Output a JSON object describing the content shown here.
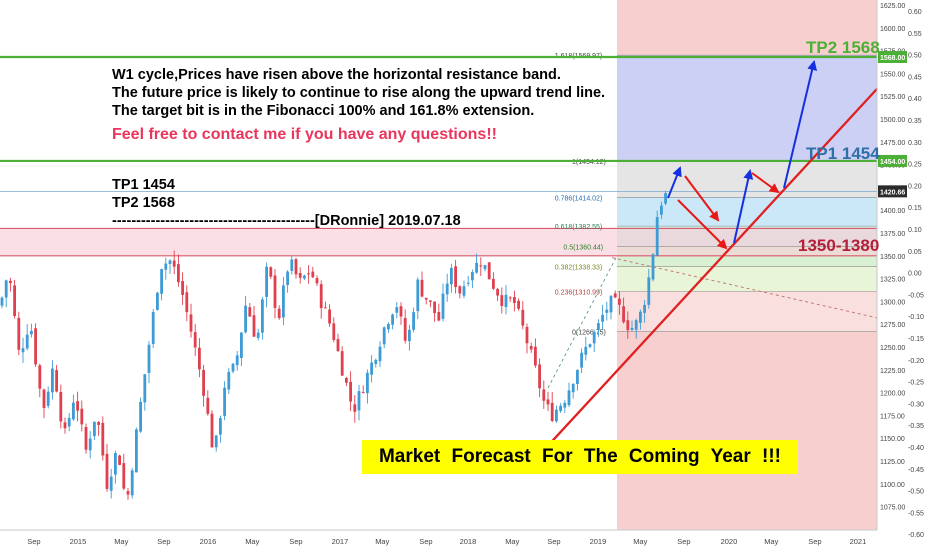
{
  "annotations": {
    "analysis_lines": [
      "W1 cycle,Prices have risen above the horizontal resistance band.",
      "The future price is likely to continue to rise along the upward trend line.",
      "The target bit is in the Fibonacci 100% and 161.8% extension."
    ],
    "contact": "Feel free to contact me if you have any questions!!",
    "tp_lines": [
      "TP1  1454",
      "TP2  1568"
    ],
    "signature": "------------------------------------------[DRonnie]  2019.07.18",
    "banner": "Market  Forecast  For  The  Coming  Year !!!",
    "tp2_tag": "TP2 1568",
    "tp1_tag": "TP1 1454",
    "band_tag": "1350-1380"
  },
  "colors": {
    "up": "#3d9bd6",
    "down": "#e0404d",
    "trend": "#e02020",
    "green_line": "#4caf36",
    "arrow_blue": "#1530e0",
    "arrow_red": "#e81818"
  },
  "chart_data": {
    "type": "candlestick",
    "timeframe": "weekly",
    "x_ticks": [
      "Sep",
      "2015",
      "May",
      "Sep",
      "2016",
      "May",
      "Sep",
      "2017",
      "May",
      "Sep",
      "2018",
      "May",
      "Sep",
      "2019",
      "May",
      "Sep",
      "2020",
      "May",
      "Sep",
      "2021"
    ],
    "y_ticks": [
      1075,
      1100,
      1125,
      1150,
      1175,
      1200,
      1225,
      1250,
      1275,
      1300,
      1325,
      1350,
      1375,
      1400,
      1425,
      1450,
      1475,
      1500,
      1525,
      1550,
      1575,
      1600,
      1625
    ],
    "y_tick_labels": [
      "1075.00",
      "1100.00",
      "1125.00",
      "1150.00",
      "1175.00",
      "1200.00",
      "1225.00",
      "1250.00",
      "1275.00",
      "1300.00",
      "1325.00",
      "1350.00",
      "1375.00",
      "1400.00",
      "1425.00",
      "1450.00",
      "1475.00",
      "1500.00",
      "1525.00",
      "1550.00",
      "1575.00",
      "1600.00",
      "1625.00"
    ],
    "ylim": [
      1055,
      1640
    ],
    "overlay_ticks": [
      "0.60",
      "0.55",
      "0.50",
      "0.45",
      "0.40",
      "0.35",
      "0.30",
      "0.25",
      "0.20",
      "0.15",
      "0.10",
      "0.05",
      "0.00",
      "-0.05",
      "-0.10",
      "-0.15",
      "-0.20",
      "-0.25",
      "-0.30",
      "-0.35",
      "-0.40",
      "-0.45",
      "-0.50",
      "-0.55",
      "-0.60"
    ],
    "price_path": [
      [
        0,
        1295
      ],
      [
        8,
        1335
      ],
      [
        18,
        1240
      ],
      [
        28,
        1280
      ],
      [
        40,
        1180
      ],
      [
        50,
        1230
      ],
      [
        60,
        1150
      ],
      [
        70,
        1200
      ],
      [
        80,
        1135
      ],
      [
        90,
        1180
      ],
      [
        100,
        1100
      ],
      [
        110,
        1140
      ],
      [
        118,
        1075
      ],
      [
        128,
        1160
      ],
      [
        140,
        1260
      ],
      [
        150,
        1340
      ],
      [
        160,
        1345
      ],
      [
        170,
        1310
      ],
      [
        180,
        1260
      ],
      [
        190,
        1205
      ],
      [
        200,
        1130
      ],
      [
        210,
        1210
      ],
      [
        220,
        1230
      ],
      [
        230,
        1300
      ],
      [
        240,
        1255
      ],
      [
        250,
        1340
      ],
      [
        260,
        1280
      ],
      [
        270,
        1345
      ],
      [
        280,
        1320
      ],
      [
        290,
        1335
      ],
      [
        300,
        1300
      ],
      [
        310,
        1270
      ],
      [
        320,
        1225
      ],
      [
        330,
        1180
      ],
      [
        340,
        1210
      ],
      [
        350,
        1240
      ],
      [
        360,
        1275
      ],
      [
        370,
        1300
      ],
      [
        380,
        1250
      ],
      [
        390,
        1320
      ],
      [
        400,
        1300
      ],
      [
        410,
        1280
      ],
      [
        420,
        1335
      ],
      [
        430,
        1310
      ],
      [
        440,
        1335
      ],
      [
        450,
        1345
      ],
      [
        460,
        1320
      ],
      [
        470,
        1300
      ],
      [
        480,
        1300
      ],
      [
        490,
        1265
      ],
      [
        500,
        1225
      ],
      [
        508,
        1190
      ],
      [
        515,
        1175
      ],
      [
        522,
        1185
      ],
      [
        528,
        1195
      ],
      [
        535,
        1215
      ],
      [
        542,
        1235
      ],
      [
        550,
        1255
      ],
      [
        558,
        1270
      ],
      [
        565,
        1290
      ],
      [
        572,
        1300
      ],
      [
        580,
        1290
      ],
      [
        586,
        1275
      ],
      [
        592,
        1270
      ],
      [
        598,
        1285
      ],
      [
        604,
        1310
      ],
      [
        610,
        1355
      ],
      [
        614,
        1395
      ],
      [
        618,
        1410
      ],
      [
        624,
        1420
      ]
    ],
    "last_price": "1420.66",
    "levels": [
      {
        "label": "TP2",
        "value": 1568,
        "tag": "1568.00"
      },
      {
        "label": "TP1",
        "value": 1454,
        "tag": "1454.00"
      },
      {
        "label": "last",
        "value": 1420.66,
        "tag": "1420.66"
      }
    ],
    "fibonacci": [
      {
        "ratio": "1.618",
        "price": "1569.97",
        "value": 1569.97
      },
      {
        "ratio": "1",
        "price": "1454.12",
        "value": 1454.12
      },
      {
        "ratio": "0.786",
        "price": "1414.02",
        "value": 1414.02
      },
      {
        "ratio": "0.618",
        "price": "1382.55",
        "value": 1382.55
      },
      {
        "ratio": "0.5",
        "price": "1360.44",
        "value": 1360.44
      },
      {
        "ratio": "0.382",
        "price": "1338.33",
        "value": 1338.33
      },
      {
        "ratio": "0.236",
        "price": "1310.99",
        "value": 1310.99
      },
      {
        "ratio": "0",
        "price": "1266.75",
        "value": 1266.75
      }
    ],
    "fib_labels": [
      "1.618(1569.97)",
      "1(1454.12)",
      "0.786(1414.02)",
      "0.618(1382.55)",
      "0.5(1360.44)",
      "0.382(1338.33)",
      "0.236(1310.99)",
      "0(1266.75)"
    ],
    "resistance_band": [
      1350,
      1380
    ]
  }
}
